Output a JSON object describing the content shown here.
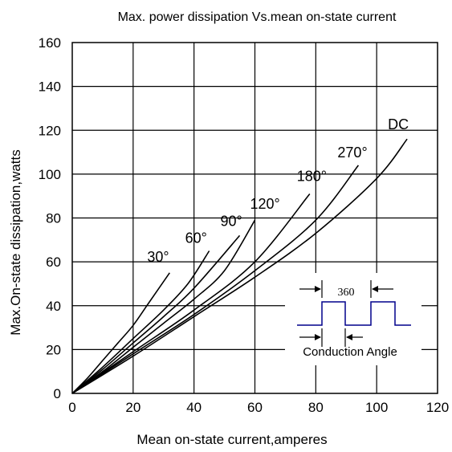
{
  "chart_data": {
    "type": "line",
    "title": "Max. power dissipation Vs.mean on-state current",
    "xlabel": "Mean on-state current,amperes",
    "ylabel": "Max.On-state dissipation,watts",
    "xlim": [
      0,
      120
    ],
    "ylim": [
      0,
      160
    ],
    "xticks": [
      0,
      20,
      40,
      60,
      80,
      100,
      120
    ],
    "yticks": [
      0,
      20,
      40,
      60,
      80,
      100,
      120,
      140,
      160
    ],
    "grid": true,
    "series": [
      {
        "name": "30°",
        "x": [
          0,
          5,
          10,
          15,
          20,
          25,
          32
        ],
        "y": [
          0,
          7,
          15,
          23,
          31,
          41,
          55
        ]
      },
      {
        "name": "60°",
        "x": [
          0,
          10,
          20,
          30,
          38,
          45
        ],
        "y": [
          0,
          12,
          25,
          38,
          50,
          65
        ]
      },
      {
        "name": "90°",
        "x": [
          0,
          10,
          20,
          30,
          40,
          55
        ],
        "y": [
          0,
          11,
          23,
          35,
          48,
          72
        ]
      },
      {
        "name": "120°",
        "x": [
          0,
          10,
          20,
          30,
          40,
          50,
          60
        ],
        "y": [
          0,
          10,
          21,
          32,
          43,
          56,
          79
        ]
      },
      {
        "name": "180°",
        "x": [
          0,
          20,
          40,
          60,
          78
        ],
        "y": [
          0,
          19,
          38,
          60,
          91
        ]
      },
      {
        "name": "270°",
        "x": [
          0,
          20,
          40,
          60,
          80,
          94
        ],
        "y": [
          0,
          18,
          36,
          56,
          79,
          104
        ]
      },
      {
        "name": "DC",
        "x": [
          0,
          20,
          40,
          60,
          80,
          100,
          110
        ],
        "y": [
          0,
          17,
          35,
          53,
          73,
          98,
          116
        ]
      }
    ],
    "inset": {
      "period_label": "360",
      "conduction_label": "Conduction Angle"
    }
  }
}
